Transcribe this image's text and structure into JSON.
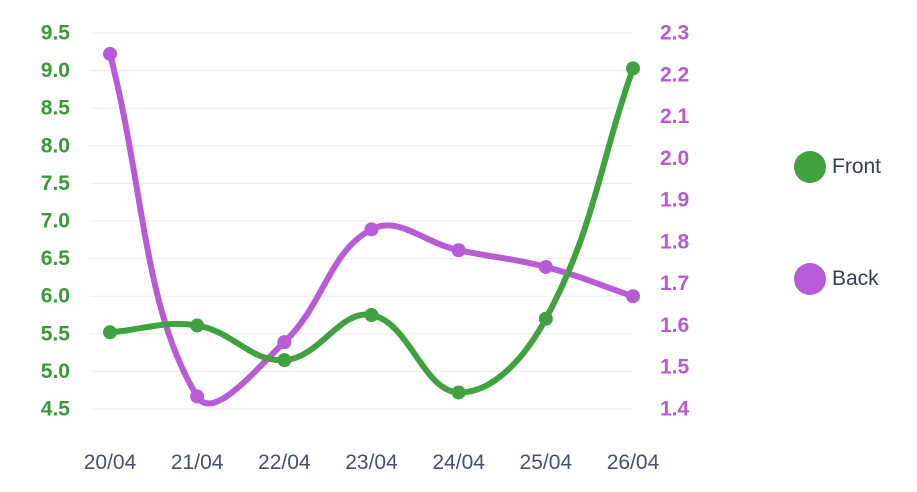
{
  "chart_data": {
    "type": "line",
    "title": "",
    "xlabel": "",
    "ylabel": "",
    "categories": [
      "20/04",
      "21/04",
      "22/04",
      "23/04",
      "24/04",
      "25/04",
      "26/04"
    ],
    "series": [
      {
        "name": "Front",
        "axis": "left",
        "color": "#41a13e",
        "values": [
          5.52,
          5.61,
          5.15,
          5.75,
          4.72,
          5.7,
          9.03
        ]
      },
      {
        "name": "Back",
        "axis": "right",
        "color": "#b85bd7",
        "values": [
          2.25,
          1.43,
          1.56,
          1.83,
          1.78,
          1.74,
          1.67
        ]
      }
    ],
    "left_axis": {
      "min": 4.5,
      "max": 9.5,
      "tick_step": 0.5,
      "ticks": [
        "9.5",
        "9.0",
        "8.5",
        "8.0",
        "7.5",
        "7.0",
        "6.5",
        "6.0",
        "5.5",
        "5.0",
        "4.5"
      ],
      "label_color": "#3a9a3a"
    },
    "right_axis": {
      "min": 1.4,
      "max": 2.3,
      "tick_step": 0.1,
      "ticks": [
        "2.3",
        "2.2",
        "2.1",
        "2.0",
        "1.9",
        "1.8",
        "1.7",
        "1.6",
        "1.5",
        "1.4"
      ],
      "label_color": "#b55bd5"
    },
    "x_axis": {
      "label_color": "#44536b"
    },
    "grid": {
      "show": true,
      "color": "#ececec"
    },
    "legend": {
      "position": "right",
      "text_color": "#32405a",
      "items": [
        {
          "label": "Front",
          "color": "#41a13e"
        },
        {
          "label": "Back",
          "color": "#b85bd7"
        }
      ]
    }
  }
}
